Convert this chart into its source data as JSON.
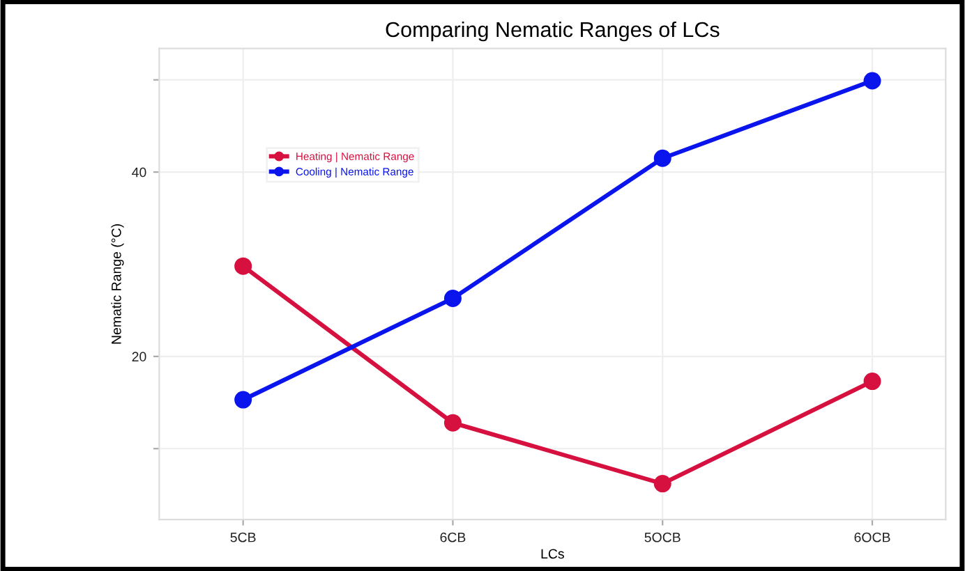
{
  "chart_data": {
    "type": "line",
    "title": "Comparing Nematic Ranges of LCs",
    "xlabel": "LCs",
    "ylabel": "Nematic Range (°C)",
    "categories": [
      "5CB",
      "6CB",
      "5OCB",
      "6OCB"
    ],
    "series": [
      {
        "name": "Heating | Nematic Range",
        "color": "#d6113f",
        "values": [
          29.8,
          12.8,
          6.2,
          17.3
        ]
      },
      {
        "name": "Cooling | Nematic Range",
        "color": "#0a14ec",
        "values": [
          15.3,
          26.3,
          41.5,
          49.9
        ]
      }
    ],
    "ylim": [
      2.3,
      53.4
    ],
    "yticks": [
      {
        "value": 10,
        "label": null
      },
      20,
      40,
      {
        "value": 50,
        "label": null
      }
    ],
    "grid": true,
    "legend": "top left",
    "marker": "circle",
    "line_style": "solid"
  }
}
